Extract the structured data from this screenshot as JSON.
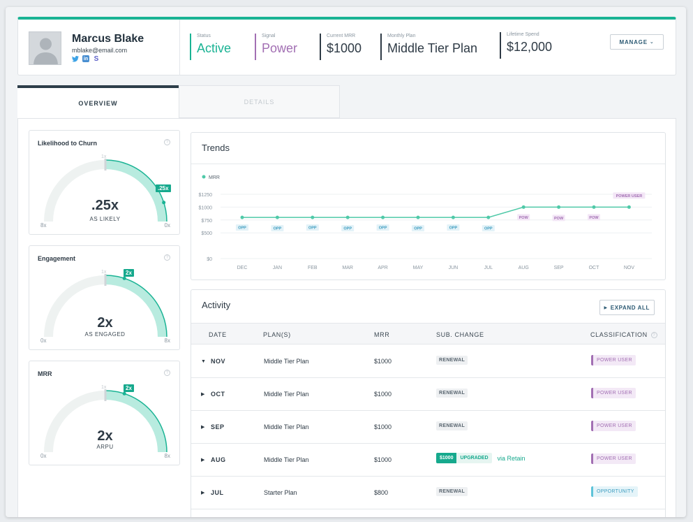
{
  "profile": {
    "name": "Marcus Blake",
    "email": "mblake@email.com",
    "socials": [
      "t",
      "in",
      "S"
    ]
  },
  "stats": {
    "status": {
      "label": "Status",
      "value": "Active"
    },
    "signal": {
      "label": "Signal",
      "value": "Power"
    },
    "mrr": {
      "label": "Current MRR",
      "value": "$1000"
    },
    "plan": {
      "label": "Monthly Plan",
      "value": "Middle Tier Plan"
    },
    "spend": {
      "label": "Lifetime Spend",
      "value": "$12,000"
    }
  },
  "manage_label": "MANAGE",
  "tabs": {
    "overview": "OVERVIEW",
    "details": "DETAILS"
  },
  "gauges": [
    {
      "title": "Likelihood to Churn",
      "value": ".25x",
      "sub": "AS LIKELY",
      "min": "8x",
      "max": "0x",
      "center": "1x",
      "badge": ".25x",
      "fraction": 0.9
    },
    {
      "title": "Engagement",
      "value": "2x",
      "sub": "AS ENGAGED",
      "min": "0x",
      "max": "8x",
      "center": "1x",
      "badge": "2x",
      "fraction": 0.6
    },
    {
      "title": "MRR",
      "value": "2x",
      "sub": "ARPU",
      "min": "0x",
      "max": "8x",
      "center": "1x",
      "badge": "2x",
      "fraction": 0.6
    }
  ],
  "trends": {
    "title": "Trends",
    "legend": "MRR",
    "colors": {
      "line": "#4fc9a8",
      "opp_bg": "#e3f2f8",
      "opp_text": "#3a9bbf",
      "pow_bg": "#f3e6f6",
      "pow_text": "#a26fb3"
    }
  },
  "chart_data": {
    "type": "line",
    "title": "Trends",
    "categories": [
      "DEC",
      "JAN",
      "FEB",
      "MAR",
      "APR",
      "MAY",
      "JUN",
      "JUL",
      "AUG",
      "SEP",
      "OCT",
      "NOV"
    ],
    "series": [
      {
        "name": "MRR",
        "values": [
          800,
          800,
          800,
          800,
          800,
          800,
          800,
          800,
          1000,
          1000,
          1000,
          1000
        ]
      }
    ],
    "point_labels": [
      "OPP",
      "OPP",
      "OPP",
      "OPP",
      "OPP",
      "OPP",
      "OPP",
      "OPP",
      "POW",
      "POW",
      "POW",
      "POWER USER"
    ],
    "yticks": [
      "$0",
      "$500",
      "$750",
      "$1000",
      "$1250"
    ],
    "ylim": [
      0,
      1250
    ],
    "grid": true
  },
  "activity": {
    "title": "Activity",
    "expand_label": "EXPAND ALL",
    "headers": {
      "date": "DATE",
      "plans": "PLAN(S)",
      "mrr": "MRR",
      "change": "SUB. CHANGE",
      "classification": "CLASSIFICATION"
    },
    "rows": [
      {
        "date": "NOV",
        "plan": "Middle Tier Plan",
        "mrr": "$1000",
        "change": "RENEWAL",
        "cls": "POWER USER",
        "cls_type": "power",
        "expanded": true
      },
      {
        "date": "OCT",
        "plan": "Middle Tier Plan",
        "mrr": "$1000",
        "change": "RENEWAL",
        "cls": "POWER USER",
        "cls_type": "power",
        "expanded": false
      },
      {
        "date": "SEP",
        "plan": "Middle Tier Plan",
        "mrr": "$1000",
        "change": "RENEWAL",
        "cls": "POWER USER",
        "cls_type": "power",
        "expanded": false
      },
      {
        "date": "AUG",
        "plan": "Middle Tier Plan",
        "mrr": "$1000",
        "change": "UPGRADED",
        "change_amount": "$1000",
        "change_via": "via Retain",
        "cls": "POWER USER",
        "cls_type": "power",
        "expanded": false
      },
      {
        "date": "JUL",
        "plan": "Starter Plan",
        "mrr": "$800",
        "change": "RENEWAL",
        "cls": "OPPORTUNITY",
        "cls_type": "opp",
        "expanded": false
      }
    ]
  },
  "colors": {
    "accent": "#1ab394",
    "signal": "#a26fb3",
    "gauge_fill": "#b8ebdf",
    "gauge_track": "#eef2f1"
  }
}
